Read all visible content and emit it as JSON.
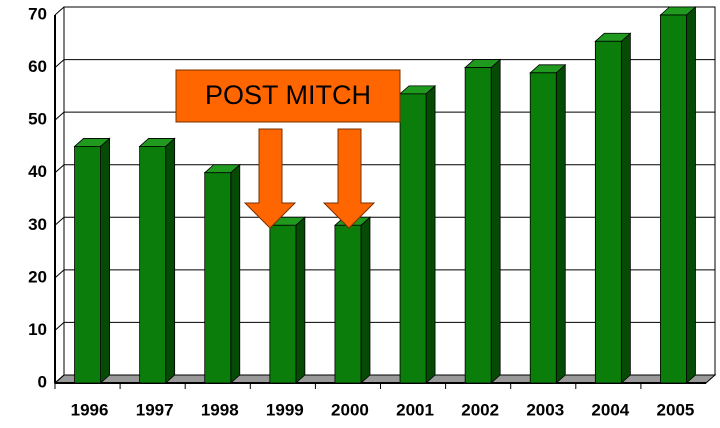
{
  "chart_data": {
    "type": "bar",
    "categories": [
      "1996",
      "1997",
      "1998",
      "1999",
      "2000",
      "2001",
      "2002",
      "2003",
      "2004",
      "2005"
    ],
    "values": [
      45,
      45,
      40,
      30,
      30,
      55,
      60,
      59,
      65,
      70
    ],
    "color": "#0b7d0b",
    "ylim": [
      0,
      70
    ],
    "yticks": [
      0,
      10,
      20,
      30,
      40,
      50,
      60,
      70
    ],
    "grid": true,
    "annotation": "POST MITCH"
  }
}
